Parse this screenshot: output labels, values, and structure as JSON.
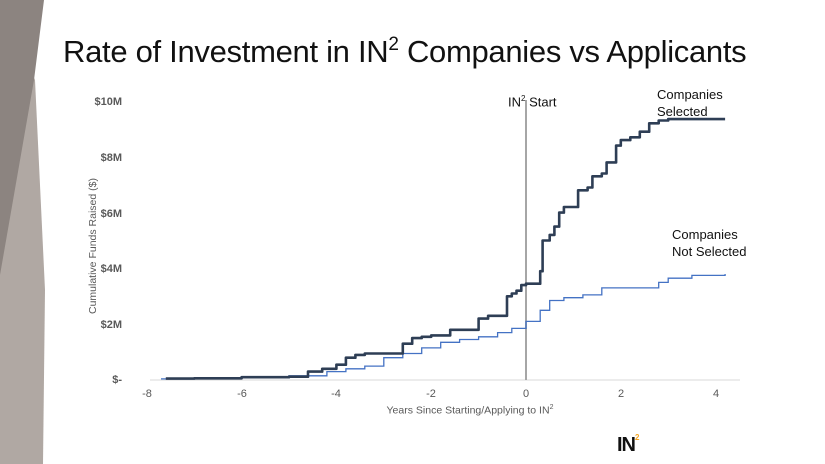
{
  "slide": {
    "title_prefix": "Rate of Investment in IN",
    "title_sup": "2",
    "title_suffix": " Companies vs Applicants",
    "logo_text": "IN",
    "logo_sup": "2",
    "colors": {
      "selected": "#2e3e55",
      "not_selected": "#4472c4",
      "marker_line": "#a6a6a6",
      "axis": "#d9d9d9",
      "deco_dark": "#8c8480",
      "deco_light": "#b0a8a3"
    }
  },
  "annotations": {
    "start_prefix": "IN",
    "start_sup": "2",
    "start_suffix": " Start",
    "selected_line1": "Companies",
    "selected_line2": "Selected",
    "not_selected_line1": "Companies",
    "not_selected_line2": "Not Selected"
  },
  "axes": {
    "y_ticks": [
      "$10M",
      "$8M",
      "$6M",
      "$4M",
      "$2M",
      "$-"
    ],
    "x_ticks": [
      "-8",
      "-6",
      "-4",
      "-2",
      "0",
      "2",
      "4"
    ],
    "ylabel": "Cumulative Funds Raised ($)",
    "xlabel_prefix": "Years Since Starting/Applying to IN",
    "xlabel_sup": "2"
  },
  "chart_data": {
    "type": "line",
    "title": "Rate of Investment in IN2 Companies vs Applicants",
    "xlabel": "Years Since Starting/Applying to IN2",
    "ylabel": "Cumulative Funds Raised ($)",
    "xlim": [
      -8,
      4.4
    ],
    "ylim": [
      0,
      10
    ],
    "y_unit": "$M",
    "grid": false,
    "legend": "inline annotations",
    "vertical_marker": {
      "x": 0,
      "label": "IN2 Start"
    },
    "series": [
      {
        "name": "Companies Selected",
        "x": [
          -7.6,
          -7.0,
          -6.0,
          -5.0,
          -4.6,
          -4.3,
          -4.0,
          -3.8,
          -3.6,
          -3.4,
          -3.2,
          -3.0,
          -2.6,
          -2.4,
          -2.2,
          -2.0,
          -1.6,
          -1.2,
          -1.0,
          -0.8,
          -0.6,
          -0.4,
          -0.3,
          -0.2,
          -0.1,
          0.0,
          0.2,
          0.3,
          0.35,
          0.5,
          0.6,
          0.7,
          0.8,
          0.9,
          1.1,
          1.3,
          1.4,
          1.6,
          1.7,
          1.9,
          2.0,
          2.2,
          2.4,
          2.6,
          2.8,
          3.0,
          3.5,
          4.2
        ],
        "y": [
          0.05,
          0.06,
          0.1,
          0.12,
          0.3,
          0.4,
          0.55,
          0.8,
          0.9,
          0.95,
          0.95,
          0.95,
          1.3,
          1.5,
          1.55,
          1.6,
          1.8,
          1.8,
          2.2,
          2.3,
          2.3,
          3.0,
          3.1,
          3.2,
          3.4,
          3.45,
          3.45,
          3.9,
          5.0,
          5.2,
          5.5,
          6.0,
          6.2,
          6.2,
          6.8,
          6.9,
          7.3,
          7.4,
          7.8,
          8.4,
          8.6,
          8.7,
          8.9,
          9.2,
          9.3,
          9.35,
          9.35,
          9.35
        ]
      },
      {
        "name": "Companies Not Selected",
        "x": [
          -7.7,
          -7.0,
          -6.0,
          -5.0,
          -4.2,
          -3.8,
          -3.4,
          -3.0,
          -2.6,
          -2.2,
          -1.8,
          -1.4,
          -1.0,
          -0.6,
          -0.3,
          0.0,
          0.3,
          0.5,
          0.8,
          1.2,
          1.6,
          2.0,
          2.8,
          3.0,
          3.5,
          4.2
        ],
        "y": [
          0.04,
          0.06,
          0.1,
          0.15,
          0.3,
          0.4,
          0.5,
          0.8,
          0.95,
          1.15,
          1.35,
          1.45,
          1.55,
          1.7,
          1.85,
          2.1,
          2.5,
          2.85,
          2.95,
          3.05,
          3.3,
          3.3,
          3.5,
          3.65,
          3.75,
          3.8
        ]
      }
    ]
  }
}
